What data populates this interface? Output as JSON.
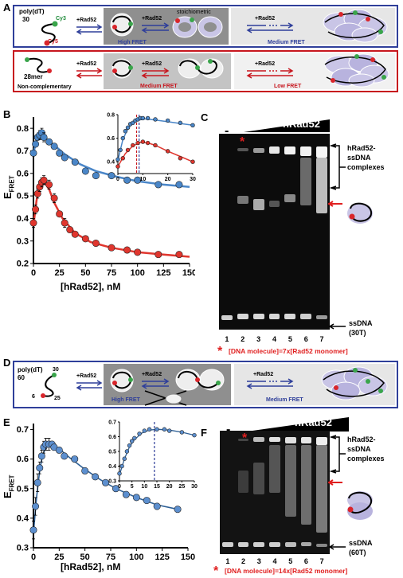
{
  "panels": [
    "A",
    "B",
    "C",
    "D",
    "E",
    "F"
  ],
  "colors": {
    "blue": "#2f3f9a",
    "red": "#c7161e",
    "blue_marker": "#4a86c8",
    "red_marker": "#e0362e",
    "e_marker": "#5c8fcf",
    "e_line": "#2d5f95"
  },
  "panelA": {
    "row1": {
      "substrate": "poly(dT)",
      "length": "30",
      "dye1": "Cy3",
      "dye2": "Cy5",
      "arrow1": "+Rad52",
      "arrow2": "+Rad52",
      "arrow2_note": "stoichiometric",
      "arrow3": "+Rad52",
      "high_label": "High FRET",
      "medium_label": "Medium FRET"
    },
    "row2": {
      "substrate": "28mer",
      "note": "Non-complementary",
      "arrow1": "+Rad52",
      "arrow2": "+Rad52",
      "arrow3": "+Rad52",
      "medium_label": "Medium FRET",
      "low_label": "Low FRET"
    }
  },
  "panelB": {
    "ylabel_main": "E",
    "ylabel_sub": "FRET",
    "xlabel": "[hRad52], nM"
  },
  "panelC": {
    "minus": "-",
    "title": "hRad52",
    "lanes": [
      "1",
      "2",
      "3",
      "4",
      "5",
      "6",
      "7"
    ],
    "complex_label": [
      "hRad52-",
      "ssDNA",
      "complexes"
    ],
    "ssdna_label": [
      "ssDNA",
      "(30T)"
    ],
    "asterisk": "*",
    "footnote": "[DNA molecule]=7x[Rad52 monomer]"
  },
  "panelD": {
    "substrate": "poly(dT)",
    "length": "60",
    "pos_top": "30",
    "pos_left": "6",
    "pos_right": "25",
    "arrow1": "+Rad52",
    "arrow2": "+Rad52",
    "arrow3": "+Rad52",
    "high_label": "High FRET",
    "medium_label": "Medium FRET"
  },
  "panelE": {
    "ylabel_main": "E",
    "ylabel_sub": "FRET",
    "xlabel": "[hRad52], nM"
  },
  "panelF": {
    "minus": "-",
    "title": "hRad52",
    "lanes": [
      "1",
      "2",
      "3",
      "4",
      "5",
      "6",
      "7"
    ],
    "complex_label": [
      "hRad52-",
      "ssDNA",
      "complexes"
    ],
    "ssdna_label": [
      "ssDNA",
      "(60T)"
    ],
    "asterisk": "*",
    "footnote": "[DNA molecule]=14x[Rad52 monomer]"
  },
  "chart_data": [
    {
      "id": "B-main",
      "type": "scatter",
      "xlabel": "[hRad52], nM",
      "ylabel": "E_FRET",
      "xlim": [
        0,
        150
      ],
      "ylim": [
        0.2,
        0.85
      ],
      "xticks": [
        0,
        25,
        50,
        75,
        100,
        125,
        150
      ],
      "yticks": [
        0.2,
        0.3,
        0.4,
        0.5,
        0.6,
        0.7,
        0.8
      ],
      "series": [
        {
          "color": "#4a86c8",
          "x": [
            0,
            2,
            4,
            6,
            8,
            10,
            15,
            20,
            25,
            30,
            40,
            50,
            60,
            75,
            90,
            100,
            120,
            140
          ],
          "y": [
            0.69,
            0.73,
            0.76,
            0.77,
            0.78,
            0.76,
            0.74,
            0.72,
            0.69,
            0.67,
            0.65,
            0.61,
            0.59,
            0.59,
            0.57,
            0.57,
            0.55,
            0.55
          ],
          "err": [
            0,
            0.01,
            0.01,
            0.02,
            0.02,
            0.02,
            0.01,
            0.01,
            0.01,
            0.01,
            0.01,
            0.01,
            0,
            0,
            0,
            0,
            0,
            0
          ],
          "fit": [
            [
              0,
              0.69
            ],
            [
              3,
              0.75
            ],
            [
              7,
              0.77
            ],
            [
              12,
              0.755
            ],
            [
              20,
              0.725
            ],
            [
              30,
              0.685
            ],
            [
              45,
              0.64
            ],
            [
              60,
              0.61
            ],
            [
              80,
              0.585
            ],
            [
              100,
              0.565
            ],
            [
              125,
              0.55
            ],
            [
              150,
              0.54
            ]
          ]
        },
        {
          "color": "#e0362e",
          "x": [
            0,
            2,
            4,
            6,
            8,
            10,
            15,
            20,
            25,
            30,
            35,
            40,
            50,
            60,
            75,
            90,
            100,
            120,
            140
          ],
          "y": [
            0.38,
            0.44,
            0.51,
            0.54,
            0.56,
            0.57,
            0.55,
            0.49,
            0.42,
            0.38,
            0.35,
            0.33,
            0.31,
            0.29,
            0.27,
            0.26,
            0.25,
            0.24,
            0.24
          ],
          "err": [
            0.02,
            0.02,
            0.02,
            0.02,
            0.02,
            0.02,
            0.02,
            0.02,
            0.01,
            0.02,
            0.01,
            0.01,
            0.01,
            0.01,
            0,
            0,
            0,
            0,
            0
          ],
          "fit": [
            [
              0,
              0.37
            ],
            [
              3,
              0.48
            ],
            [
              6,
              0.545
            ],
            [
              10,
              0.565
            ],
            [
              15,
              0.53
            ],
            [
              20,
              0.47
            ],
            [
              28,
              0.4
            ],
            [
              40,
              0.335
            ],
            [
              55,
              0.295
            ],
            [
              75,
              0.27
            ],
            [
              100,
              0.25
            ],
            [
              125,
              0.24
            ],
            [
              150,
              0.23
            ]
          ]
        }
      ]
    },
    {
      "id": "B-inset",
      "type": "scatter",
      "xlim": [
        0,
        30
      ],
      "ylim": [
        0.3,
        0.8
      ],
      "xticks": [
        0,
        10,
        20,
        30
      ],
      "yticks": [
        0.4,
        0.6,
        0.8
      ],
      "vlines": [
        {
          "x": 7.5,
          "color": "#c7161e"
        },
        {
          "x": 8.5,
          "color": "#2f3f9a"
        }
      ],
      "series": [
        {
          "color": "#4a86c8",
          "x": [
            0,
            1,
            2,
            3,
            4,
            5,
            6,
            7,
            8,
            9,
            10,
            12,
            15,
            20,
            25,
            30
          ],
          "y": [
            0.42,
            0.5,
            0.6,
            0.66,
            0.69,
            0.72,
            0.73,
            0.75,
            0.76,
            0.77,
            0.77,
            0.77,
            0.76,
            0.75,
            0.73,
            0.71
          ],
          "fit": [
            [
              0,
              0.41
            ],
            [
              2,
              0.59
            ],
            [
              4,
              0.68
            ],
            [
              6,
              0.73
            ],
            [
              8,
              0.755
            ],
            [
              11,
              0.765
            ],
            [
              15,
              0.755
            ],
            [
              20,
              0.74
            ],
            [
              25,
              0.725
            ],
            [
              30,
              0.71
            ]
          ]
        },
        {
          "color": "#e0362e",
          "x": [
            0,
            2,
            4,
            6,
            8,
            10,
            12,
            15,
            20,
            25,
            30
          ],
          "y": [
            0.36,
            0.43,
            0.5,
            0.54,
            0.56,
            0.57,
            0.56,
            0.54,
            0.49,
            0.43,
            0.4
          ],
          "fit": [
            [
              0,
              0.36
            ],
            [
              3,
              0.47
            ],
            [
              6,
              0.535
            ],
            [
              9,
              0.565
            ],
            [
              12,
              0.56
            ],
            [
              15,
              0.54
            ],
            [
              20,
              0.49
            ],
            [
              25,
              0.445
            ],
            [
              30,
              0.4
            ]
          ]
        }
      ]
    },
    {
      "id": "E-main",
      "type": "scatter",
      "xlabel": "[hRad52], nM",
      "ylabel": "E_FRET",
      "xlim": [
        0,
        150
      ],
      "ylim": [
        0.3,
        0.72
      ],
      "xticks": [
        0,
        25,
        50,
        75,
        100,
        125,
        150
      ],
      "yticks": [
        0.3,
        0.4,
        0.5,
        0.6,
        0.7
      ],
      "series": [
        {
          "color": "#5c8fcf",
          "x": [
            0,
            2,
            4,
            6,
            8,
            10,
            12,
            15,
            18,
            20,
            25,
            30,
            40,
            50,
            60,
            70,
            80,
            90,
            100,
            110,
            120,
            140
          ],
          "y": [
            0.36,
            0.44,
            0.52,
            0.57,
            0.61,
            0.64,
            0.65,
            0.65,
            0.65,
            0.64,
            0.63,
            0.61,
            0.6,
            0.56,
            0.54,
            0.52,
            0.5,
            0.48,
            0.47,
            0.46,
            0.44,
            0.43
          ],
          "err": [
            0.03,
            0.03,
            0.03,
            0.02,
            0.02,
            0.02,
            0.02,
            0.02,
            0.01,
            0.01,
            0.01,
            0.01,
            0.01,
            0.01,
            0.01,
            0.01,
            0.01,
            0.01,
            0.01,
            0.01,
            0.01,
            0.01
          ],
          "fit": [
            [
              0,
              0.35
            ],
            [
              3,
              0.47
            ],
            [
              6,
              0.56
            ],
            [
              9,
              0.615
            ],
            [
              13,
              0.645
            ],
            [
              18,
              0.65
            ],
            [
              25,
              0.635
            ],
            [
              35,
              0.605
            ],
            [
              50,
              0.565
            ],
            [
              65,
              0.53
            ],
            [
              80,
              0.5
            ],
            [
              100,
              0.47
            ],
            [
              120,
              0.445
            ],
            [
              140,
              0.43
            ]
          ]
        }
      ]
    },
    {
      "id": "E-inset",
      "type": "scatter",
      "xlim": [
        0,
        30
      ],
      "ylim": [
        0.3,
        0.7
      ],
      "xticks": [
        0,
        5,
        10,
        15,
        20,
        25,
        30
      ],
      "yticks": [
        0.3,
        0.4,
        0.5,
        0.6,
        0.7
      ],
      "vlines": [
        {
          "x": 14,
          "color": "#2f3f9a"
        }
      ],
      "series": [
        {
          "color": "#5c8fcf",
          "x": [
            0,
            1,
            2,
            3,
            4,
            5,
            6,
            8,
            10,
            12,
            15,
            18,
            20,
            25,
            30
          ],
          "y": [
            0.35,
            0.4,
            0.45,
            0.5,
            0.54,
            0.57,
            0.59,
            0.62,
            0.64,
            0.65,
            0.65,
            0.65,
            0.64,
            0.63,
            0.61
          ],
          "fit": [
            [
              0,
              0.34
            ],
            [
              2,
              0.45
            ],
            [
              4,
              0.53
            ],
            [
              6,
              0.58
            ],
            [
              9,
              0.625
            ],
            [
              12,
              0.645
            ],
            [
              15,
              0.65
            ],
            [
              20,
              0.645
            ],
            [
              25,
              0.63
            ],
            [
              30,
              0.61
            ]
          ]
        }
      ]
    }
  ]
}
